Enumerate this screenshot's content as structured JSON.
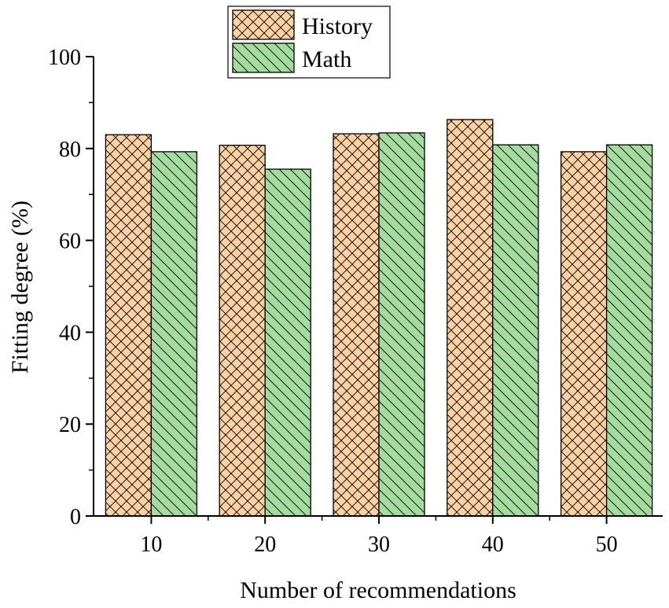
{
  "chart_data": {
    "type": "bar",
    "title": "",
    "xlabel": "Number of recommendations",
    "ylabel": "Fitting degree (%)",
    "categories": [
      "10",
      "20",
      "30",
      "40",
      "50"
    ],
    "ylim": [
      0,
      100
    ],
    "yticks": [
      "0",
      "20",
      "40",
      "60",
      "80",
      "100"
    ],
    "legend_position": "top-center",
    "grid": false,
    "series": [
      {
        "name": "History",
        "values": [
          83.0,
          80.7,
          83.2,
          86.3,
          79.3
        ],
        "color": "#fcd2a2",
        "pattern": "crosshatch"
      },
      {
        "name": "Math",
        "values": [
          79.3,
          75.5,
          83.4,
          80.8,
          80.8
        ],
        "color": "#a6dba0",
        "pattern": "diagonal"
      }
    ]
  }
}
